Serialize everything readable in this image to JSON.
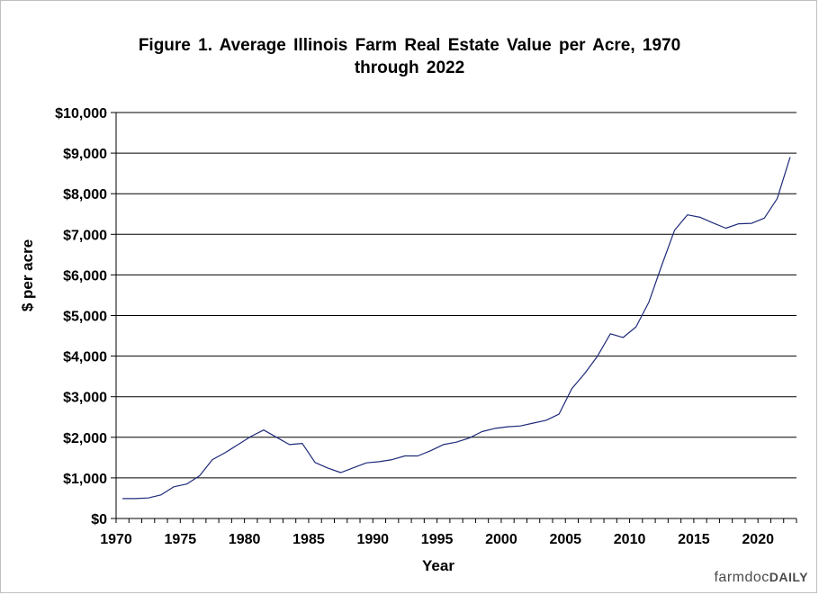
{
  "chart_data": {
    "type": "line",
    "title_line1": "Figure 1.  Average Illinois Farm Real Estate Value per Acre, 1970",
    "title_line2": "through  2022",
    "xlabel": "Year",
    "ylabel": "$ per acre",
    "xlim": [
      1970,
      2023
    ],
    "ylim": [
      0,
      10000
    ],
    "x_ticks": [
      1970,
      1975,
      1980,
      1985,
      1990,
      1995,
      2000,
      2005,
      2010,
      2015,
      2020
    ],
    "x_tick_labels": [
      "1970",
      "1975",
      "1980",
      "1985",
      "1990",
      "1995",
      "2000",
      "2005",
      "2010",
      "2015",
      "2020"
    ],
    "y_ticks": [
      0,
      1000,
      2000,
      3000,
      4000,
      5000,
      6000,
      7000,
      8000,
      9000,
      10000
    ],
    "y_tick_labels": [
      "$0",
      "$1,000",
      "$2,000",
      "$3,000",
      "$4,000",
      "$5,000",
      "$6,000",
      "$7,000",
      "$8,000",
      "$9,000",
      "$10,000"
    ],
    "grid": "horizontal",
    "line_color": "#1f2a7a",
    "series": [
      {
        "x": [
          1970,
          1971,
          1972,
          1973,
          1974,
          1975,
          1976,
          1977,
          1978,
          1979,
          1980,
          1981,
          1982,
          1983,
          1984,
          1985,
          1986,
          1987,
          1988,
          1989,
          1990,
          1991,
          1992,
          1993,
          1994,
          1995,
          1996,
          1997,
          1998,
          1999,
          2000,
          2001,
          2002,
          2003,
          2004,
          2005,
          2006,
          2007,
          2008,
          2009,
          2010,
          2011,
          2012,
          2013,
          2014,
          2015,
          2016,
          2017,
          2018,
          2019,
          2020,
          2021,
          2022
        ],
        "values": [
          490,
          490,
          505,
          580,
          780,
          850,
          1050,
          1450,
          1620,
          1820,
          2020,
          2180,
          2000,
          1820,
          1850,
          1380,
          1240,
          1130,
          1250,
          1370,
          1400,
          1450,
          1540,
          1540,
          1670,
          1820,
          1880,
          1980,
          2140,
          2220,
          2260,
          2280,
          2350,
          2420,
          2570,
          3200,
          3570,
          4000,
          4550,
          4460,
          4720,
          5330,
          6230,
          7100,
          7480,
          7420,
          7280,
          7150,
          7260,
          7270,
          7400,
          7880,
          8900
        ]
      }
    ]
  },
  "brand": {
    "prefix": "farmdoc",
    "suffix": "DAILY"
  }
}
